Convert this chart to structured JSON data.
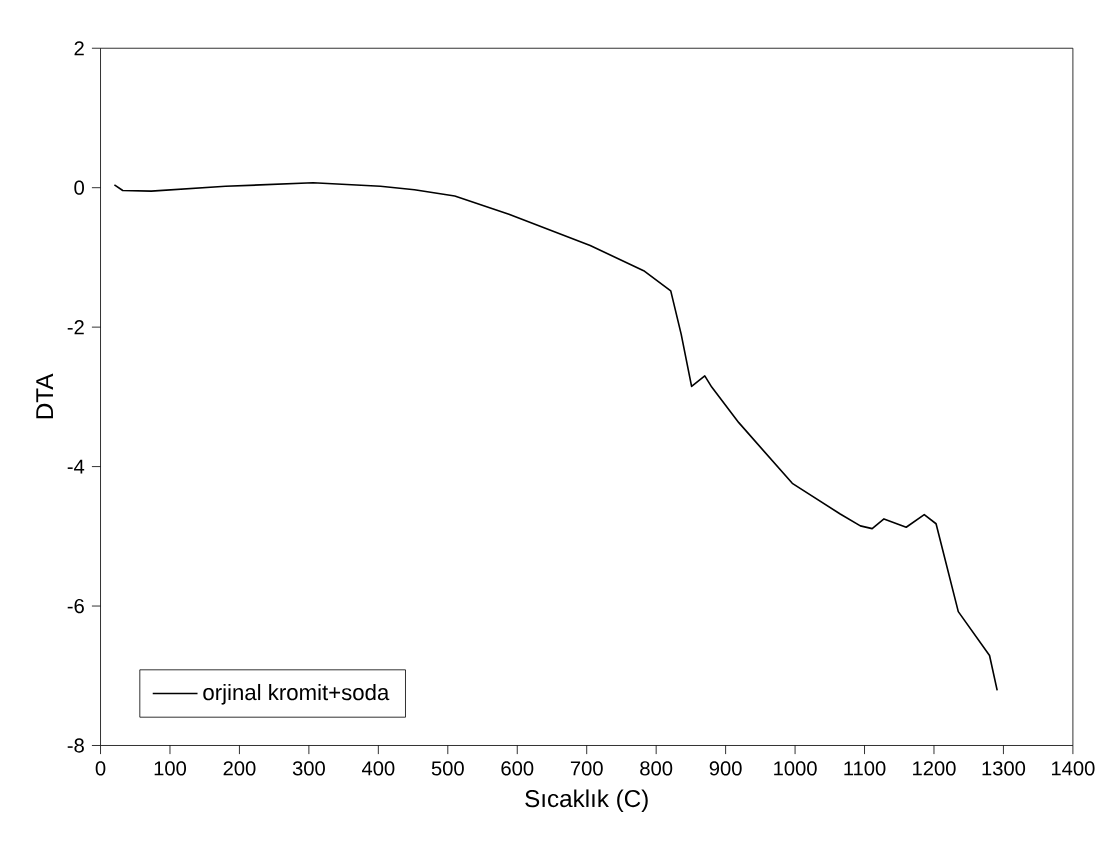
{
  "chart_data": {
    "type": "line",
    "xlabel": "Sıcaklık (C)",
    "ylabel": "DTA",
    "x": [
      20,
      32,
      73,
      180,
      306,
      403,
      452,
      510,
      588,
      705,
      782,
      821,
      836,
      851,
      870,
      880,
      919,
      996,
      1065,
      1094,
      1111,
      1128,
      1160,
      1186,
      1203,
      1235,
      1280,
      1291
    ],
    "series": [
      {
        "name": "orjinal kromit+soda",
        "color": "#000000",
        "values": [
          0.04,
          -0.04,
          -0.05,
          0.02,
          0.07,
          0.02,
          -0.03,
          -0.12,
          -0.38,
          -0.83,
          -1.19,
          -1.48,
          -2.1,
          -2.85,
          -2.7,
          -2.86,
          -3.37,
          -4.24,
          -4.68,
          -4.85,
          -4.89,
          -4.75,
          -4.87,
          -4.69,
          -4.82,
          -6.08,
          -6.71,
          -7.21
        ]
      }
    ],
    "xlim": [
      0,
      1400
    ],
    "ylim": [
      -8,
      2
    ],
    "xticks": [
      0,
      100,
      200,
      300,
      400,
      500,
      600,
      700,
      800,
      900,
      1000,
      1100,
      1200,
      1300,
      1400
    ],
    "yticks": [
      -8,
      -6,
      -4,
      -2,
      0,
      2
    ],
    "grid": false,
    "legend": "bottom left",
    "marker": "none",
    "line_style": "solid"
  }
}
